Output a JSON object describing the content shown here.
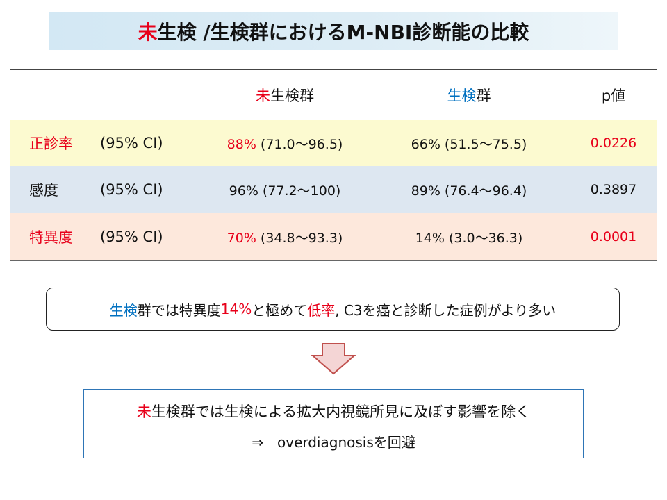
{
  "title": {
    "red": "未",
    "rest": "生検 /生検群におけるM-NBI診断能の比較"
  },
  "table": {
    "header": {
      "group1_red": "未",
      "group1_rest": "生検群",
      "group2_blue": "生検",
      "group2_rest": "群",
      "p": "p値"
    },
    "rows": [
      {
        "name": "正診率",
        "ci": "(95% CI)",
        "g1_pct": "88%",
        "g1_ci": " (71.0～96.5)",
        "g2": "66% (51.5～75.5)",
        "p": "0.0226"
      },
      {
        "name": "感度",
        "ci": "(95% CI)",
        "g1_pct": "96%",
        "g1_ci": " (77.2～100)",
        "g2": "89% (76.4～96.4)",
        "p": "0.3897"
      },
      {
        "name": "特異度",
        "ci": "(95% CI)",
        "g1_pct": "70%",
        "g1_ci": " (34.8～93.3)",
        "g2": "14% (3.0～36.3)",
        "p": "0.0001"
      }
    ]
  },
  "note": {
    "blue": "生検",
    "part1": "群では特異度 ",
    "red1": "14%",
    "part2": "と極めて",
    "red2": "低率",
    "part3": ", C3を癌と診断した症例がより多い"
  },
  "conclusion": {
    "red": "未",
    "line1": "生検群では生検による拡大内視鏡所見に及ぼす影響を除く",
    "line2": "⇒　overdiagnosisを回避"
  },
  "colors": {
    "red": "#e8001a",
    "blue": "#0070c0",
    "row1": "#fcfad0",
    "row2": "#dde7f1",
    "row3": "#fde8dc",
    "title_bg": "#d3e8f4",
    "arrow_fill": "#f4d5d5",
    "arrow_stroke": "#c0504d"
  },
  "icons": {
    "arrow": "down-arrow-icon"
  }
}
